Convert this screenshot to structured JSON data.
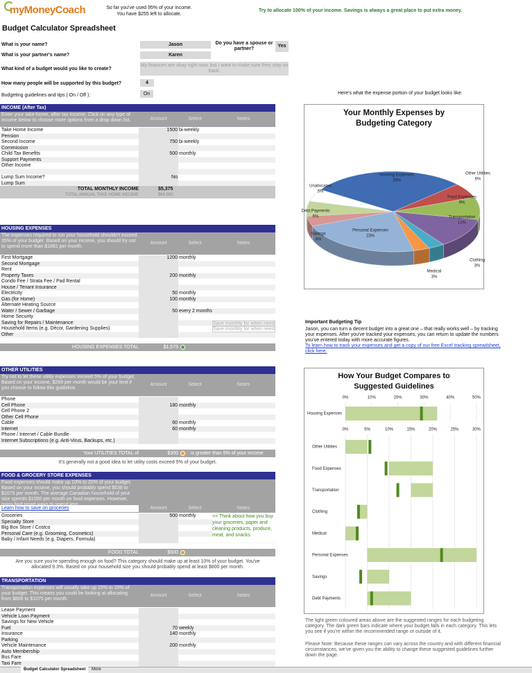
{
  "header": {
    "logo": "myMoneyCoach",
    "status": [
      "So far you've used 95% of your income.",
      "You have $255 left to allocate."
    ],
    "tip": "Try to allocate 100% of your income. Savings is always a great place to put extra money."
  },
  "title": "Budget Calculator Spreadsheet",
  "questions": {
    "name": {
      "label": "What is your name?",
      "value": "Jason"
    },
    "partner": {
      "label": "What is your partner's name?",
      "value": "Karen"
    },
    "spouse": {
      "label": "Do you have a spouse or partner?",
      "value": "Yes"
    },
    "budget_type": {
      "label": "What kind of a budget would you like to create?",
      "value": "My finances are okay right now, but I want to make sure they stay on track."
    },
    "people": {
      "label": "How many people will be supported by this budget?",
      "value": "4"
    },
    "tips": {
      "label": "Budgeting guidelines and tips ( On / Off ):",
      "value": "On"
    }
  },
  "columns": [
    "Amount",
    "Select",
    "Notes"
  ],
  "sections": [
    {
      "title": "INCOME (After Tax)",
      "intro": "Enter your take-home, after tax income. Click on any type of income below to choose more options from a drop down list.",
      "rows": [
        {
          "label": "Take Home Income",
          "amount": "1500",
          "select": "bi-weekly"
        },
        {
          "label": "Pension"
        },
        {
          "label": "Second Income",
          "amount": "750",
          "select": "bi-weekly"
        },
        {
          "label": "Commission"
        },
        {
          "label": "Child Tax Benefits",
          "amount": "500",
          "select": "monthly"
        },
        {
          "label": "Support Payments"
        },
        {
          "label": "Other Income"
        },
        {},
        {
          "label": "Lump Sum Income?",
          "amount": "No"
        },
        {
          "label": "Lump Sum"
        }
      ],
      "totals": [
        {
          "label": "TOTAL MONTHLY INCOME",
          "amount": "$5,375"
        },
        {
          "label": "TOTAL ANNUAL TAKE HOME INCOME",
          "amount": "$64,500"
        }
      ]
    },
    {
      "title": "HOUSING EXPENSES",
      "intro": "The expenses required to run your household shouldn't exceed 35% of your budget. Based on your income, you should try not to spend more than $1881 per month.",
      "rows": [
        {
          "label": "First Mortgage",
          "amount": "1200",
          "select": "monthly"
        },
        {
          "label": "Second Mortgage"
        },
        {
          "label": "Rent"
        },
        {
          "label": "Property Taxes",
          "amount": "200",
          "select": "monthly"
        },
        {
          "label": "Condo Fee / Strata Fee / Pad Rental"
        },
        {
          "label": "House / Tenant Insurance"
        },
        {
          "label": "Electricity",
          "amount": "50",
          "select": "monthly"
        },
        {
          "label": "Gas (for Home)",
          "amount": "100",
          "select": "monthly"
        },
        {
          "label": "Alternate Heating Source"
        },
        {
          "label": "Water / Sewer / Garbage",
          "amount": "50",
          "select": "every 2 months"
        },
        {
          "label": "Home Security"
        },
        {
          "label": "Saving for Repairs / Maintenance",
          "note": "Save monthly for when needed"
        },
        {
          "label": "Household Items (e.g. Décor, Gardening Supplies)",
          "note": "Save monthly for when needed"
        },
        {
          "label": "Other"
        }
      ],
      "footer": {
        "label": "HOUSING EXPENSES TOTAL",
        "amount": "$1,575"
      }
    },
    {
      "title": "OTHER UTILITIES",
      "intro": "Try not to let these utility expenses exceed 5% of your budget. Based on your income, $269 per month would be your limit if you choose to follow this guideline.",
      "rows": [
        {
          "label": "Phone"
        },
        {
          "label": "Cell Phone",
          "amount": "180",
          "select": "monthly"
        },
        {
          "label": "Cell Phone 2"
        },
        {
          "label": "Other Cell Phone"
        },
        {
          "label": "Cable",
          "amount": "60",
          "select": "monthly"
        },
        {
          "label": "Internet",
          "amount": "60",
          "select": "monthly"
        },
        {
          "label": "Phone / Internet / Cable Bundle"
        },
        {
          "label": "Internet Subscriptions (e.g. Anti-Virus, Backups, etc.)"
        }
      ],
      "footer": {
        "label": "Your UTILITIES TOTAL of",
        "amount": "$300",
        "after": "is greater than 5% of your income"
      },
      "message": "It's generally not a good idea to let utility costs exceed 5% of your budget."
    },
    {
      "title": "FOOD & GROCERY STORE EXPENSES",
      "intro": "Food expenses should make up 10% to 20% of your budget. Based on your income, you should probably spend $538 to $1075 per month. The average Canadian household of your size spends $1000 per month on food expenses. However, many find smart ways to spend less.",
      "link": "Learn how to save on groceries",
      "rows": [
        {
          "label": "Groceries",
          "amount": "500",
          "select": "monthly"
        },
        {
          "label": "Specialty Store"
        },
        {
          "label": "Big Box Store / Costco"
        },
        {
          "label": "Personal Care (e.g. Grooming, Cosmetics)"
        },
        {
          "label": "Baby / Infant Needs (e.g. Diapers, Formula)"
        }
      ],
      "side_note": "<< Think about how you buy your groceries, paper and cleaning products, produce, meat, and snacks",
      "footer": {
        "label": "FOOD TOTAL",
        "amount": "$500"
      },
      "message": "Are you sure you're spending enough on food? This category should make up at least 10% of your budget. You've allocated 9.3%. Based on your household size you should probably spend at least $800 per month."
    },
    {
      "title": "TRANSPORTATION",
      "intro": "Transportation expenses will usually take up 15% to 20% of your budget. This means you could be looking at allocating from $806 to $1075 per month.",
      "rows": [
        {
          "label": "Lease Payment"
        },
        {
          "label": "Vehicle Loan Payment"
        },
        {
          "label": "Savings for New Vehicle"
        },
        {
          "label": "Fuel",
          "amount": "70",
          "select": "weekly"
        },
        {
          "label": "Insurance",
          "amount": "140",
          "select": "monthly"
        },
        {
          "label": "Parking"
        },
        {
          "label": "Vehicle Maintenance",
          "amount": "200",
          "select": "monthly"
        },
        {
          "label": "Auto Membership"
        },
        {
          "label": "Bus Fare"
        },
        {
          "label": "Taxi Fare"
        }
      ]
    }
  ],
  "pie_intro": "Here's what the expense portion of your budget looks like:",
  "pie_chart": {
    "type": "pie",
    "title": "Your Monthly Expenses by Budgeting Category",
    "categories": [
      "Housing Expenses",
      "Other Utilities",
      "Food Expenses",
      "Transportation",
      "Clothing",
      "Medical",
      "Personal Expenses",
      "Savings",
      "Debt Payments",
      "Unallocated"
    ],
    "values": [
      29,
      6,
      9,
      12,
      3,
      3,
      23,
      4,
      6,
      5
    ],
    "value_labels": [
      "29%",
      "6%",
      "9%",
      "12%",
      "3%",
      "3%",
      "23%",
      "4%",
      "6%",
      "5%"
    ],
    "colors": [
      "#3f6cb3",
      "#c0504d",
      "#9bbb59",
      "#8064a2",
      "#4bacc6",
      "#f79646",
      "#95b3d7",
      "#d99694",
      "#c3d69b",
      "#ffffff"
    ]
  },
  "tip": {
    "title": "Important Budgeting Tip",
    "text": "Jason, you can turn a decent budget into a great one – that really works well – by tracking your expenses. After you've tracked your expenses, you can return to update the numbers you've entered today with more accurate figures.",
    "link": "To learn how to track your expenses and get a copy of our free Excel tracking spreadsheet, click here."
  },
  "guideline_chart": {
    "type": "range",
    "title": "How Your Budget Compares to Suggested Guidelines",
    "range_color": "#c3d69b",
    "value_color": "#4f8a1e",
    "housing": {
      "category": "Housing Expenses",
      "range": [
        0,
        35
      ],
      "value": 29,
      "xlim": [
        0,
        50
      ],
      "xticks": [
        {
          "value": 0,
          "label": "0%"
        },
        {
          "value": 10,
          "label": "10%"
        },
        {
          "value": 20,
          "label": "20%"
        },
        {
          "value": 30,
          "label": "30%"
        },
        {
          "value": 40,
          "label": "40%"
        },
        {
          "value": 50,
          "label": "50%"
        }
      ]
    },
    "categories": [
      "Other Utilities",
      "Food Expenses",
      "Transportation",
      "Clothing",
      "Medical",
      "Personal Expenses",
      "Savings",
      "Debt Payments"
    ],
    "ranges": [
      [
        0,
        5
      ],
      [
        10,
        20
      ],
      [
        15,
        20
      ],
      [
        3,
        5
      ],
      [
        0,
        3
      ],
      [
        5,
        30
      ],
      [
        5,
        10
      ],
      [
        5,
        15
      ]
    ],
    "values": [
      5.6,
      9.3,
      12,
      3,
      2.7,
      22,
      3.5,
      6
    ],
    "xlim": [
      0,
      30
    ],
    "xticks": [
      {
        "value": 0,
        "label": "0%"
      },
      {
        "value": 5,
        "label": "5%"
      },
      {
        "value": 10,
        "label": "10%"
      },
      {
        "value": 15,
        "label": "15%"
      },
      {
        "value": 20,
        "label": "20%"
      },
      {
        "value": 25,
        "label": "25%"
      },
      {
        "value": 30,
        "label": "30%"
      }
    ],
    "grid": true
  },
  "notes": [
    "The light green coloured areas above are the suggested ranges for each budgeting category. The dark green bars indicate where your budget falls in each category. This lets you see if you're within the recommended range or outside of it.",
    "Please Note: Because these ranges can vary across the country and with different financial circumstances, we've given you the ability to change these suggested guidelines further down the page."
  ],
  "tabs": [
    "Budget Calculator Spreadsheet",
    "More"
  ]
}
